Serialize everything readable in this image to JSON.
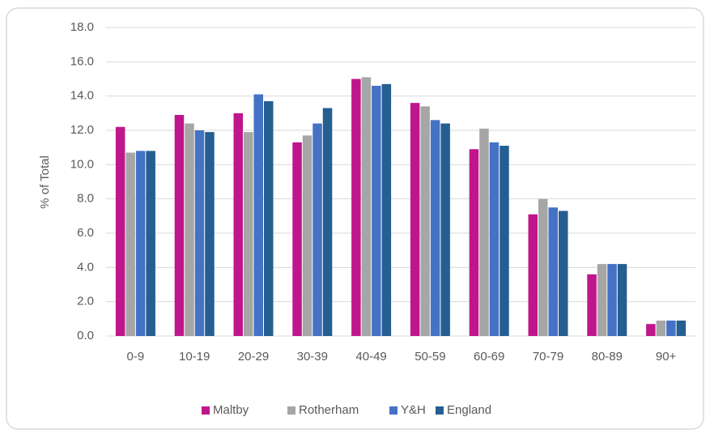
{
  "chart_data": {
    "type": "bar",
    "y_label": "% of Total",
    "categories": [
      "0-9",
      "10-19",
      "20-29",
      "30-39",
      "40-49",
      "50-59",
      "60-69",
      "70-79",
      "80-89",
      "90+"
    ],
    "series": [
      {
        "name": "Maltby",
        "color": "#c0168c",
        "values": [
          12.2,
          12.9,
          13.0,
          11.3,
          15.0,
          13.6,
          10.9,
          7.1,
          3.6,
          0.7
        ]
      },
      {
        "name": "Rotherham",
        "color": "#a6a6a6",
        "values": [
          10.7,
          12.4,
          11.9,
          11.7,
          15.1,
          13.4,
          12.1,
          8.0,
          4.2,
          0.9
        ]
      },
      {
        "name": "Y&H",
        "color": "#4472c4",
        "values": [
          10.8,
          12.0,
          14.1,
          12.4,
          14.6,
          12.6,
          11.3,
          7.5,
          4.2,
          0.9
        ]
      },
      {
        "name": "England",
        "color": "#255e91",
        "values": [
          10.8,
          11.9,
          13.7,
          13.3,
          14.7,
          12.4,
          11.1,
          7.3,
          4.2,
          0.9
        ]
      }
    ],
    "ylim": [
      0,
      18
    ],
    "yticks": [
      {
        "value": 0,
        "label": "0.0"
      },
      {
        "value": 2,
        "label": "2.0"
      },
      {
        "value": 4,
        "label": "4.0"
      },
      {
        "value": 6,
        "label": "6.0"
      },
      {
        "value": 8,
        "label": "8.0"
      },
      {
        "value": 10,
        "label": "10.0"
      },
      {
        "value": 12,
        "label": "12.0"
      },
      {
        "value": 14,
        "label": "14.0"
      },
      {
        "value": 16,
        "label": "16.0"
      },
      {
        "value": 18,
        "label": "18.0"
      }
    ],
    "grid": true,
    "legend": "bottom"
  }
}
